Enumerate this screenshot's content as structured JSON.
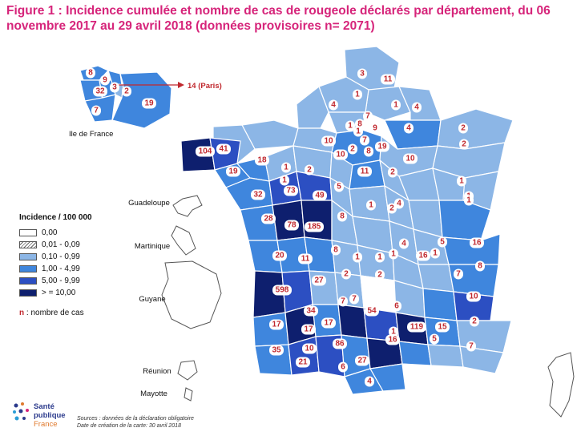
{
  "title": "Figure 1 : Incidence cumulée et nombre de cas de rougeole déclarés par département, du 06 novembre 2017 au 29 avril 2018 (données provisoires n= 2071)",
  "colors": {
    "class_0": "#ffffff",
    "class_1": "#ffffff",
    "class_2": "#8cb6e6",
    "class_3": "#3f86dd",
    "class_4": "#2c4fc2",
    "class_5": "#0e1f6e",
    "count_text": "#c0282e",
    "title_text": "#d6247a"
  },
  "legend": {
    "title": "Incidence / 100 000",
    "classes": [
      {
        "label": "0,00",
        "color": "#ffffff",
        "hatched": false
      },
      {
        "label": "0,01 - 0,09",
        "color": "#ffffff",
        "hatched": true
      },
      {
        "label": "0,10 - 0,99",
        "color": "#8cb6e6",
        "hatched": false
      },
      {
        "label": "1,00 - 4,99",
        "color": "#3f86dd",
        "hatched": false
      },
      {
        "label": "5,00 - 9,99",
        "color": "#2c4fc2",
        "hatched": false
      },
      {
        "label": "> = 10,00",
        "color": "#0e1f6e",
        "hatched": false
      }
    ],
    "note_symbol": "n",
    "note_text": " : nombre de cas"
  },
  "labels": {
    "ile_de_france": "Ile de France",
    "paris": "14 (Paris)",
    "guadeloupe": "Guadeloupe",
    "martinique": "Martinique",
    "guyane": "Guyane",
    "reunion": "Réunion",
    "mayotte": "Mayotte"
  },
  "idf_counts": [
    "8",
    "9",
    "32",
    "3",
    "2",
    "7",
    "19"
  ],
  "dept_counts": [
    "3",
    "11",
    "4",
    "1",
    "1",
    "4",
    "7",
    "1",
    "8",
    "9",
    "1",
    "4",
    "2",
    "10",
    "7",
    "2",
    "19",
    "10",
    "2",
    "8",
    "1",
    "10",
    "104",
    "41",
    "18",
    "1",
    "2",
    "11",
    "2",
    "1",
    "1",
    "19",
    "73",
    "49",
    "5",
    "32",
    "1",
    "2",
    "1",
    "28",
    "78",
    "185",
    "8",
    "4",
    "1",
    "16",
    "20",
    "11",
    "8",
    "1",
    "1",
    "5",
    "8",
    "2",
    "1",
    "4",
    "16",
    "27",
    "2",
    "7",
    "7",
    "598",
    "34",
    "7",
    "54",
    "6",
    "1",
    "10",
    "17",
    "17",
    "15",
    "17",
    "10",
    "86",
    "16",
    "119",
    "2",
    "35",
    "21",
    "6",
    "27",
    "4",
    "5",
    "7"
  ],
  "logo": {
    "line1": "Santé",
    "line2": "publique",
    "line3": "France"
  },
  "sources": {
    "line1": "Sources : données de la déclaration obligatoire",
    "line2": "Date de création de la carte: 30 avril 2018"
  }
}
